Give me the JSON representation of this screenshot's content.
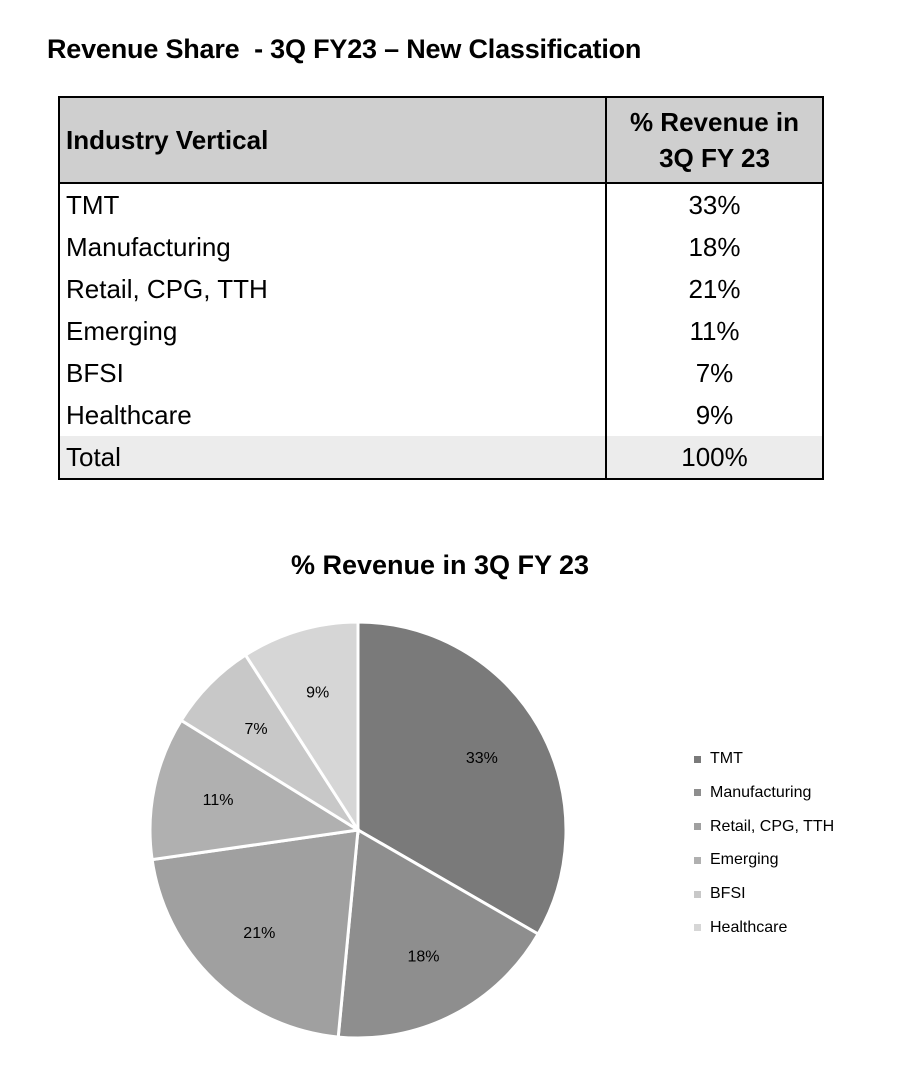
{
  "page": {
    "title": "Revenue Share  - 3Q FY23 – New Classification"
  },
  "table": {
    "header_industry": "Industry Vertical",
    "header_pct_line1": "% Revenue in",
    "header_pct_line2": "3Q FY 23",
    "rows": [
      {
        "label": "TMT",
        "value": "33%"
      },
      {
        "label": "Manufacturing",
        "value": "18%"
      },
      {
        "label": "Retail, CPG, TTH",
        "value": "21%"
      },
      {
        "label": "Emerging",
        "value": "11%"
      },
      {
        "label": "BFSI",
        "value": "7%"
      },
      {
        "label": "Healthcare",
        "value": "9%"
      }
    ],
    "total": {
      "label": "Total",
      "value": "100%"
    }
  },
  "chart_data": {
    "type": "pie",
    "title": "% Revenue in 3Q FY 23",
    "categories": [
      "TMT",
      "Manufacturing",
      "Retail, CPG, TTH",
      "Emerging",
      "BFSI",
      "Healthcare"
    ],
    "values": [
      33,
      18,
      21,
      11,
      7,
      9
    ],
    "data_labels": [
      "33%",
      "18%",
      "21%",
      "11%",
      "7%",
      "9%"
    ],
    "colors": [
      "#7a7a7a",
      "#8e8e8e",
      "#a0a0a0",
      "#b0b0b0",
      "#c8c8c8",
      "#d6d6d6"
    ],
    "legend_position": "right"
  }
}
